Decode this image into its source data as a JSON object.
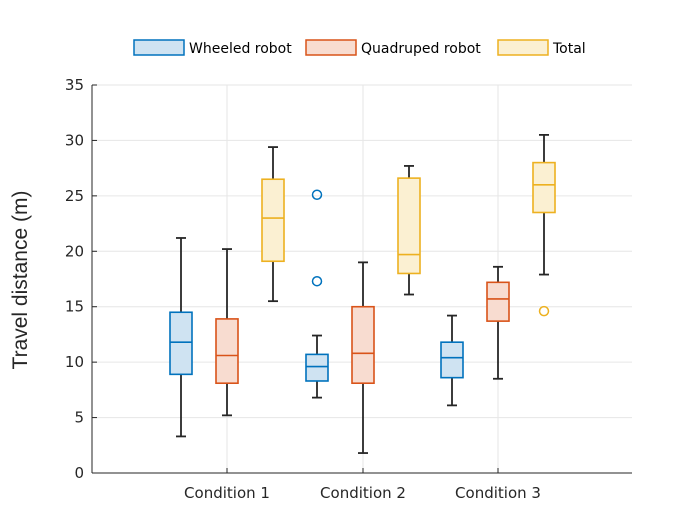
{
  "chart_data": {
    "type": "box",
    "ylabel": "Travel distance (m)",
    "ylim": [
      0,
      35
    ],
    "yticks": [
      0,
      5,
      10,
      15,
      20,
      25,
      30,
      35
    ],
    "categories": [
      "Condition 1",
      "Condition 2",
      "Condition 3"
    ],
    "grid": true,
    "legend_position": "top",
    "series": [
      {
        "name": "Wheeled robot",
        "edge_color": "#0072BD",
        "fill_color": "#CFE3F2",
        "boxes": [
          {
            "whisker_low": 3.3,
            "q1": 8.9,
            "median": 11.8,
            "q3": 14.5,
            "whisker_high": 21.2,
            "outliers": []
          },
          {
            "whisker_low": 6.8,
            "q1": 8.3,
            "median": 9.6,
            "q3": 10.7,
            "whisker_high": 12.4,
            "outliers": [
              17.3,
              25.1
            ]
          },
          {
            "whisker_low": 6.1,
            "q1": 8.6,
            "median": 10.4,
            "q3": 11.8,
            "whisker_high": 14.2,
            "outliers": []
          }
        ]
      },
      {
        "name": "Quadruped robot",
        "edge_color": "#D95319",
        "fill_color": "#F8DCD0",
        "boxes": [
          {
            "whisker_low": 5.2,
            "q1": 8.1,
            "median": 10.6,
            "q3": 13.9,
            "whisker_high": 20.2,
            "outliers": []
          },
          {
            "whisker_low": 1.8,
            "q1": 8.1,
            "median": 10.8,
            "q3": 15.0,
            "whisker_high": 19.0,
            "outliers": []
          },
          {
            "whisker_low": 8.5,
            "q1": 13.7,
            "median": 15.7,
            "q3": 17.2,
            "whisker_high": 18.6,
            "outliers": []
          }
        ]
      },
      {
        "name": "Total",
        "edge_color": "#EDB120",
        "fill_color": "#FBF0D2",
        "boxes": [
          {
            "whisker_low": 15.5,
            "q1": 19.1,
            "median": 23.0,
            "q3": 26.5,
            "whisker_high": 29.4,
            "outliers": []
          },
          {
            "whisker_low": 16.1,
            "q1": 18.0,
            "median": 19.7,
            "q3": 26.6,
            "whisker_high": 27.7,
            "outliers": []
          },
          {
            "whisker_low": 17.9,
            "q1": 23.5,
            "median": 26.0,
            "q3": 28.0,
            "whisker_high": 30.5,
            "outliers": [
              14.6
            ]
          }
        ]
      }
    ]
  }
}
